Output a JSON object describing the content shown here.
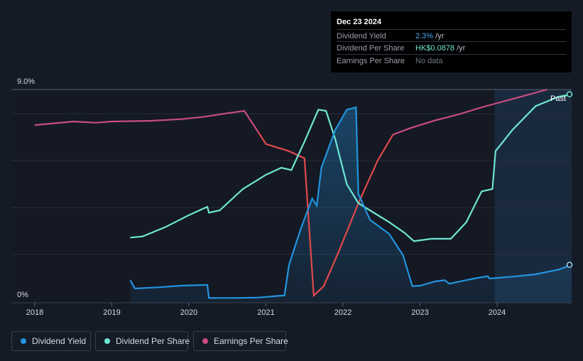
{
  "tooltip": {
    "date": "Dec 23 2024",
    "rows": [
      {
        "label": "Dividend Yield",
        "value": "2.3%",
        "unit": " /yr"
      },
      {
        "label": "Dividend Per Share",
        "value": "HK$0.0878",
        "unit": " /yr"
      },
      {
        "label": "Earnings Per Share",
        "value": "No data",
        "unit": ""
      }
    ]
  },
  "past_label": "Past",
  "legend": [
    {
      "label": "Dividend Yield",
      "color": "#2394df"
    },
    {
      "label": "Dividend Per Share",
      "color": "#6ee7d2"
    },
    {
      "label": "Earnings Per Share",
      "color": "#c94b83"
    }
  ],
  "colors": {
    "background": "#151b26",
    "dividend_yield": "#2394df",
    "dividend_per_share": "#6ee7d2",
    "earnings_per_share": "#c94b83",
    "eps_decline": "#e04a4a",
    "forecast_shade": "#1a2a3e"
  },
  "chart_data": {
    "type": "line",
    "y_axis": {
      "min": 0,
      "max": 9,
      "tick_labels": [
        "0%",
        "9.0%"
      ]
    },
    "x_axis": {
      "tick_labels": [
        "2018",
        "2019",
        "2020",
        "2021",
        "2022",
        "2023",
        "2024"
      ]
    },
    "grid": true,
    "past_region_start": 2023.97,
    "series": [
      {
        "name": "Dividend Yield",
        "unit": "%",
        "points": [
          [
            2019.24,
            0.95
          ],
          [
            2019.3,
            0.6
          ],
          [
            2019.6,
            0.65
          ],
          [
            2019.9,
            0.72
          ],
          [
            2020.2,
            0.75
          ],
          [
            2020.24,
            0.75
          ],
          [
            2020.26,
            0.2
          ],
          [
            2020.6,
            0.2
          ],
          [
            2020.9,
            0.22
          ],
          [
            2021.2,
            0.3
          ],
          [
            2021.24,
            0.3
          ],
          [
            2021.3,
            1.6
          ],
          [
            2021.45,
            3.1
          ],
          [
            2021.6,
            4.4
          ],
          [
            2021.66,
            4.1
          ],
          [
            2021.72,
            5.7
          ],
          [
            2021.9,
            7.3
          ],
          [
            2022.05,
            8.15
          ],
          [
            2022.17,
            8.25
          ],
          [
            2022.2,
            4.6
          ],
          [
            2022.35,
            3.5
          ],
          [
            2022.6,
            2.9
          ],
          [
            2022.78,
            2.0
          ],
          [
            2022.9,
            0.7
          ],
          [
            2023.0,
            0.72
          ],
          [
            2023.2,
            0.9
          ],
          [
            2023.32,
            0.95
          ],
          [
            2023.38,
            0.8
          ],
          [
            2023.55,
            0.92
          ],
          [
            2023.75,
            1.05
          ],
          [
            2023.88,
            1.12
          ],
          [
            2023.9,
            1.02
          ],
          [
            2024.2,
            1.1
          ],
          [
            2024.5,
            1.2
          ],
          [
            2024.8,
            1.4
          ],
          [
            2024.97,
            1.6
          ]
        ]
      },
      {
        "name": "Dividend Per Share",
        "unit": "relative",
        "points": [
          [
            2019.24,
            2.75
          ],
          [
            2019.4,
            2.8
          ],
          [
            2019.7,
            3.2
          ],
          [
            2020.0,
            3.7
          ],
          [
            2020.24,
            4.05
          ],
          [
            2020.26,
            3.8
          ],
          [
            2020.4,
            3.9
          ],
          [
            2020.7,
            4.8
          ],
          [
            2021.0,
            5.4
          ],
          [
            2021.2,
            5.7
          ],
          [
            2021.33,
            5.6
          ],
          [
            2021.5,
            6.8
          ],
          [
            2021.68,
            8.15
          ],
          [
            2021.78,
            8.1
          ],
          [
            2021.9,
            6.9
          ],
          [
            2022.05,
            5.0
          ],
          [
            2022.2,
            4.2
          ],
          [
            2022.35,
            3.9
          ],
          [
            2022.6,
            3.4
          ],
          [
            2022.8,
            2.95
          ],
          [
            2022.92,
            2.6
          ],
          [
            2023.15,
            2.7
          ],
          [
            2023.4,
            2.7
          ],
          [
            2023.6,
            3.4
          ],
          [
            2023.8,
            4.7
          ],
          [
            2023.94,
            4.8
          ],
          [
            2023.98,
            6.4
          ],
          [
            2024.2,
            7.3
          ],
          [
            2024.5,
            8.3
          ],
          [
            2024.8,
            8.7
          ],
          [
            2024.97,
            8.8
          ]
        ]
      },
      {
        "name": "Earnings Per Share",
        "unit": "relative",
        "points": [
          [
            2018.0,
            7.5
          ],
          [
            2018.5,
            7.65
          ],
          [
            2018.8,
            7.6
          ],
          [
            2019.0,
            7.65
          ],
          [
            2019.5,
            7.68
          ],
          [
            2019.9,
            7.75
          ],
          [
            2020.2,
            7.85
          ],
          [
            2020.5,
            8.0
          ],
          [
            2020.72,
            8.1
          ],
          [
            2020.9,
            7.2
          ],
          [
            2021.0,
            6.7
          ],
          [
            2021.3,
            6.4
          ],
          [
            2021.5,
            6.1
          ],
          [
            2021.55,
            3.7
          ],
          [
            2021.62,
            0.3
          ],
          [
            2021.75,
            0.7
          ],
          [
            2021.95,
            2.2
          ],
          [
            2022.2,
            4.2
          ],
          [
            2022.45,
            6.0
          ],
          [
            2022.65,
            7.1
          ],
          [
            2022.9,
            7.4
          ],
          [
            2023.2,
            7.7
          ],
          [
            2023.5,
            7.95
          ],
          [
            2023.8,
            8.25
          ],
          [
            2024.2,
            8.6
          ],
          [
            2024.65,
            9.0
          ]
        ]
      }
    ]
  }
}
